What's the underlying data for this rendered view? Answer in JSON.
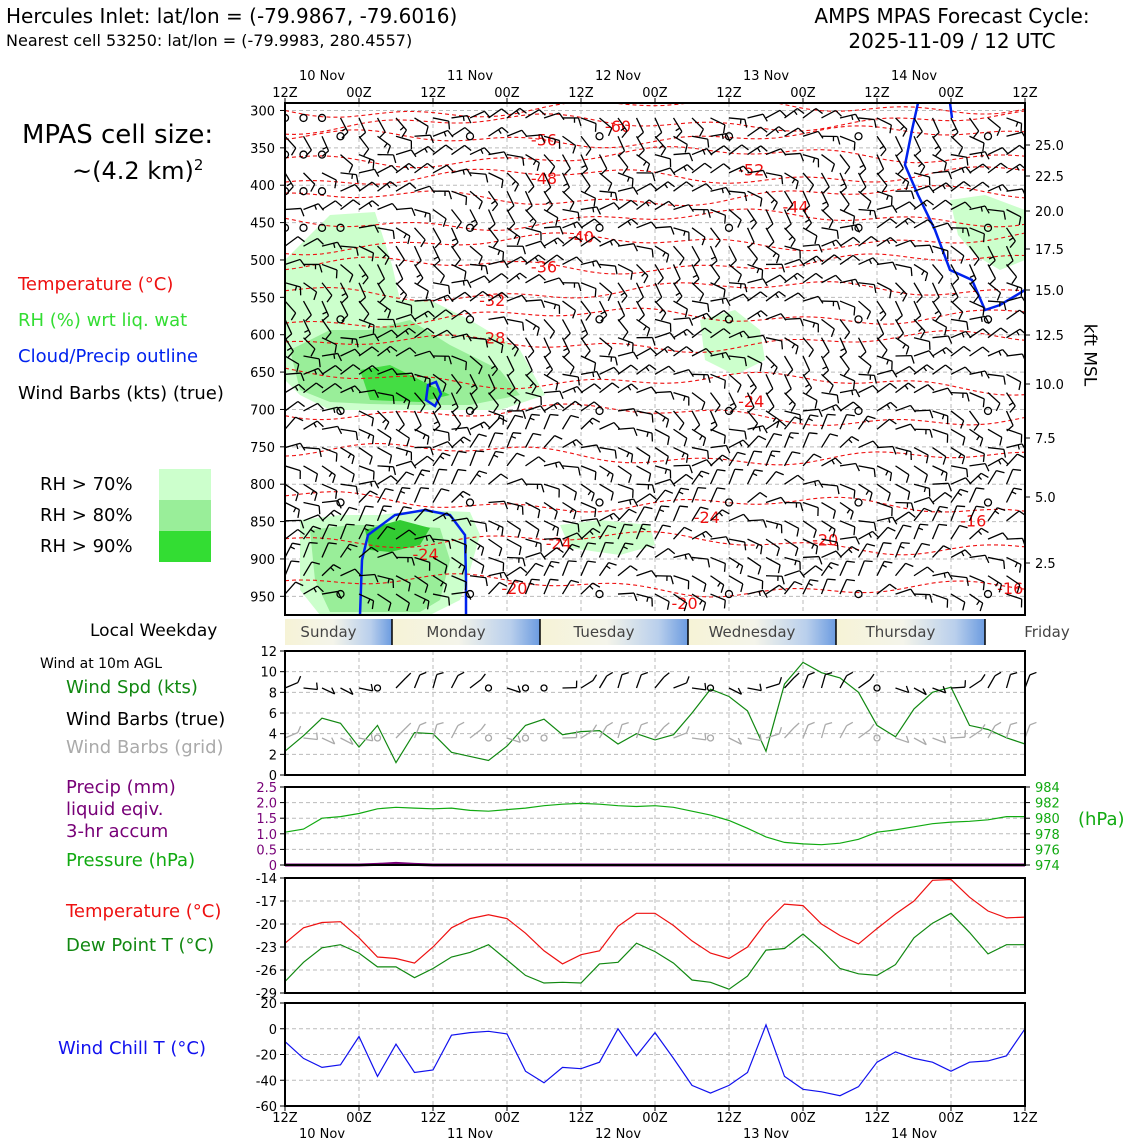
{
  "header": {
    "title_left": "Hercules Inlet: lat/lon = (-79.9867, -79.6016)",
    "subtitle_left": "Nearest cell 53250: lat/lon = (-79.9983, 280.4557)",
    "title_right_line1": "AMPS MPAS Forecast Cycle:",
    "title_right_line2": "2025-11-09 / 12 UTC"
  },
  "cell_size": {
    "line1": "MPAS cell size:",
    "line2": "~(4.2 km)",
    "sup": "2"
  },
  "legend": {
    "temperature": "Temperature (°C)",
    "rh": "RH (%) wrt liq. wat",
    "cloud": "Cloud/Precip outline",
    "barbs": "Wind Barbs (kts) (true)",
    "rh70": "RH > 70%",
    "rh80": "RH > 80%",
    "rh90": "RH > 90%",
    "colors": {
      "rh70": "#ccffcc",
      "rh80": "#99ee99",
      "rh90": "#33dd33",
      "temp": "#ee1111",
      "cloud": "#0022ee"
    }
  },
  "weekday": {
    "label": "Local Weekday",
    "days": [
      "Sunday",
      "Monday",
      "Tuesday",
      "Wednesday",
      "Thursday",
      "Friday"
    ]
  },
  "side_labels": {
    "wind_10m": "Wind at 10m AGL",
    "wind_spd": "Wind Spd (kts)",
    "wind_barbs_true": "Wind Barbs (true)",
    "wind_barbs_grid": "Wind Barbs (grid)",
    "precip1": "Precip (mm)",
    "precip2": "liquid eqiv.",
    "precip3": "3-hr accum",
    "pressure": "Pressure (hPa)",
    "pressure_unit": "(hPa)",
    "temperature": "Temperature (°C)",
    "dewpoint": "Dew Point T (°C)",
    "windchill": "Wind Chill T (°C)",
    "kft": "kft MSL"
  },
  "time_axis": {
    "hour_labels": [
      "12Z",
      "00Z",
      "12Z",
      "00Z",
      "12Z",
      "00Z",
      "12Z",
      "00Z",
      "12Z",
      "00Z",
      "12Z"
    ],
    "date_labels": [
      "10 Nov",
      "11 Nov",
      "12 Nov",
      "13 Nov",
      "14 Nov"
    ]
  },
  "chart_data": [
    {
      "type": "heatmap",
      "name": "pressure-time cross-section",
      "y_unit": "hPa",
      "y_ticks": [
        "300",
        "350",
        "400",
        "450",
        "500",
        "550",
        "600",
        "650",
        "700",
        "750",
        "800",
        "850",
        "900",
        "950"
      ],
      "kft_ticks": [
        "25.0",
        "22.5",
        "20.0",
        "17.5",
        "15.0",
        "12.5",
        "10.0",
        "7.5",
        "5.0",
        "2.5"
      ],
      "temperature_contours": [
        {
          "label": "-60",
          "lx": 0.45,
          "p": 322
        },
        {
          "label": "-56",
          "lx": 0.35,
          "p": 340
        },
        {
          "label": "-52",
          "lx": 0.63,
          "p": 380
        },
        {
          "label": "-48",
          "lx": 0.35,
          "p": 392
        },
        {
          "label": "-44",
          "lx": 0.69,
          "p": 430
        },
        {
          "label": "-40",
          "lx": 0.4,
          "p": 470
        },
        {
          "label": "-36",
          "lx": 0.35,
          "p": 510
        },
        {
          "label": "-32",
          "lx": 0.28,
          "p": 555
        },
        {
          "label": "-28",
          "lx": 0.28,
          "p": 605
        },
        {
          "label": "-24",
          "lx": 0.63,
          "p": 690
        },
        {
          "label": "-24",
          "lx": 0.19,
          "p": 895
        },
        {
          "label": "-24",
          "lx": 0.37,
          "p": 880
        },
        {
          "label": "-24",
          "lx": 0.57,
          "p": 845
        },
        {
          "label": "-20",
          "lx": 0.73,
          "p": 875
        },
        {
          "label": "-20",
          "lx": 0.31,
          "p": 940
        },
        {
          "label": "-20",
          "lx": 0.54,
          "p": 960
        },
        {
          "label": "-16",
          "lx": 0.93,
          "p": 850
        },
        {
          "label": "-16",
          "lx": 0.98,
          "p": 940
        }
      ]
    },
    {
      "type": "line",
      "name": "wind speed 10m",
      "ylim": [
        0,
        12
      ],
      "y_ticks": [
        "0",
        "2",
        "4",
        "6",
        "8",
        "10",
        "12"
      ],
      "series": [
        {
          "name": "Wind Spd (kts)",
          "color": "#118811",
          "values": [
            2.3,
            3.8,
            5.5,
            5.0,
            2.7,
            4.8,
            1.2,
            4.1,
            4.0,
            2.2,
            1.8,
            1.4,
            2.8,
            4.8,
            5.4,
            3.9,
            4.2,
            4.3,
            3.0,
            4.0,
            3.4,
            3.9,
            6.0,
            8.3,
            7.6,
            6.2,
            2.3,
            8.8,
            10.9,
            9.9,
            9.4,
            8.0,
            4.8,
            3.7,
            6.4,
            8.0,
            8.5,
            4.8,
            4.4,
            3.6,
            3.0
          ]
        }
      ]
    },
    {
      "type": "line",
      "name": "precip and pressure",
      "ylim": [
        0,
        2.5
      ],
      "y_ticks": [
        "0",
        "0.5",
        "1.0",
        "1.5",
        "2.0",
        "2.5"
      ],
      "y2lim": [
        974,
        984
      ],
      "y2_ticks": [
        "974",
        "976",
        "978",
        "980",
        "982",
        "984"
      ],
      "series": [
        {
          "name": "Pressure (hPa)",
          "color": "#11aa11",
          "axis": "right",
          "values": [
            978.2,
            978.6,
            980.0,
            980.2,
            980.6,
            981.2,
            981.4,
            981.3,
            981.2,
            981.3,
            981.0,
            980.9,
            981.1,
            981.3,
            981.6,
            981.8,
            981.9,
            981.8,
            981.6,
            981.5,
            981.6,
            981.4,
            980.9,
            980.4,
            979.7,
            978.7,
            977.6,
            976.9,
            976.7,
            976.6,
            976.8,
            977.3,
            978.2,
            978.5,
            978.9,
            979.3,
            979.5,
            979.6,
            979.8,
            980.2,
            980.2
          ]
        },
        {
          "name": "Precip (mm)",
          "color": "#770077",
          "axis": "left",
          "values": [
            0,
            0,
            0,
            0,
            0,
            0.02,
            0.05,
            0.02,
            0,
            0,
            0,
            0,
            0,
            0,
            0,
            0,
            0,
            0,
            0,
            0,
            0,
            0,
            0,
            0,
            0,
            0,
            0,
            0,
            0,
            0,
            0,
            0,
            0,
            0,
            0,
            0,
            0,
            0,
            0,
            0,
            0
          ]
        }
      ]
    },
    {
      "type": "line",
      "name": "temperature and dew point",
      "ylim": [
        -29,
        -14
      ],
      "y_ticks": [
        "-29",
        "-26",
        "-23",
        "-20",
        "-17",
        "-14"
      ],
      "series": [
        {
          "name": "Temperature (°C)",
          "color": "#ee1111",
          "values": [
            -22.5,
            -20.5,
            -19.8,
            -19.7,
            -21.8,
            -24.3,
            -24.5,
            -25.1,
            -23.0,
            -20.5,
            -19.3,
            -18.8,
            -19.3,
            -21.2,
            -23.5,
            -25.2,
            -24.0,
            -23.5,
            -20.3,
            -18.6,
            -18.6,
            -20.2,
            -22.2,
            -23.8,
            -24.5,
            -23.0,
            -19.8,
            -17.4,
            -17.6,
            -20.0,
            -21.5,
            -22.6,
            -20.6,
            -18.7,
            -17.0,
            -14.3,
            -14.2,
            -16.5,
            -18.3,
            -19.2,
            -19.1
          ]
        },
        {
          "name": "Dew Point T (°C)",
          "color": "#118811",
          "values": [
            -27.5,
            -25.0,
            -23.1,
            -22.7,
            -23.8,
            -25.6,
            -25.6,
            -27.0,
            -25.8,
            -24.3,
            -23.7,
            -22.7,
            -24.7,
            -26.7,
            -27.7,
            -27.6,
            -27.7,
            -25.2,
            -25.0,
            -22.5,
            -23.6,
            -25.1,
            -27.3,
            -27.6,
            -28.5,
            -26.8,
            -23.4,
            -23.2,
            -21.3,
            -23.4,
            -25.8,
            -26.5,
            -26.7,
            -25.3,
            -21.8,
            -19.9,
            -18.6,
            -21.1,
            -23.9,
            -22.7,
            -22.7
          ]
        }
      ]
    },
    {
      "type": "line",
      "name": "wind chill",
      "ylim": [
        -60,
        20
      ],
      "y_ticks": [
        "-60",
        "-40",
        "-20",
        "0",
        "20"
      ],
      "series": [
        {
          "name": "Wind Chill T (°C)",
          "color": "#1111ee",
          "values": [
            -10,
            -23,
            -30,
            -28,
            -6,
            -37,
            -12,
            -34,
            -32,
            -5,
            -3,
            -2,
            -4,
            -33,
            -42,
            -30,
            -31,
            -26,
            0,
            -21,
            -3,
            -23,
            -44,
            -50,
            -44,
            -34,
            3,
            -37,
            -47,
            -49,
            -52,
            -45,
            -26,
            -18,
            -23,
            -26,
            -33,
            -26,
            -25,
            -21,
            0
          ]
        }
      ]
    }
  ]
}
